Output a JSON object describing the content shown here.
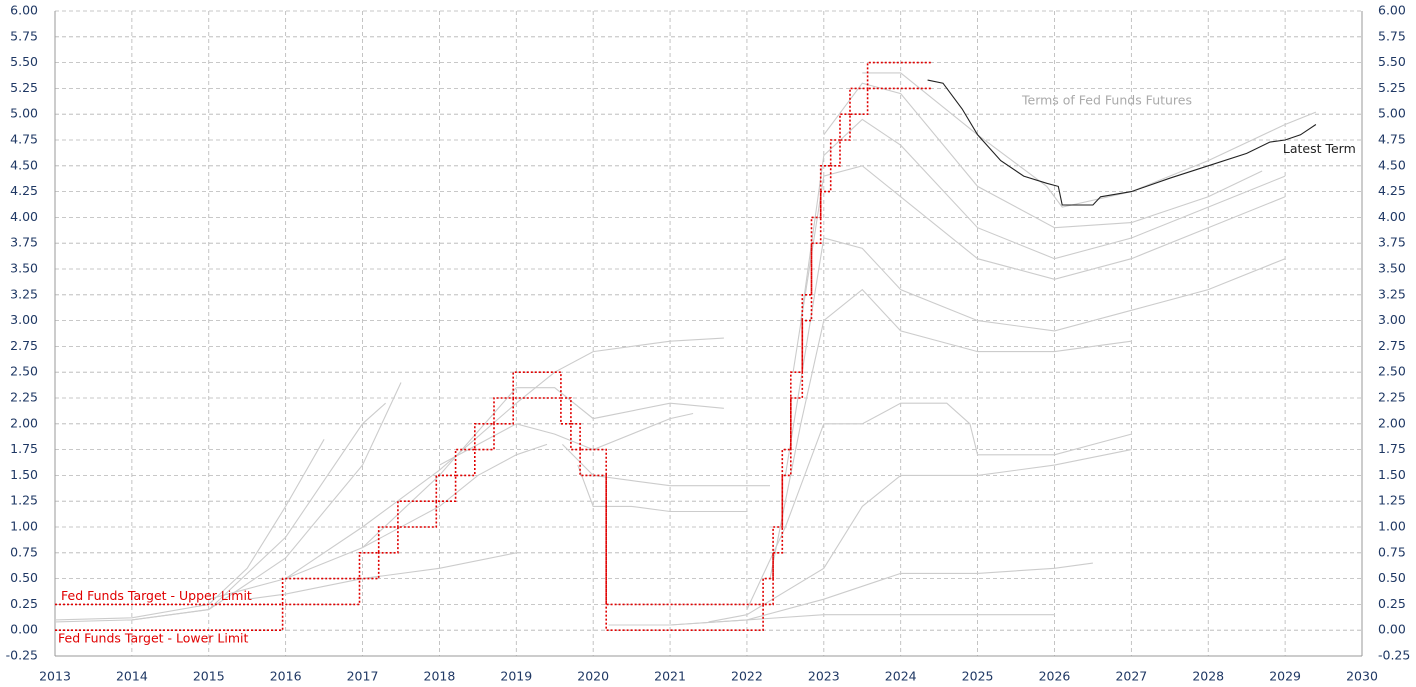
{
  "chart_data": {
    "type": "line",
    "annotation": "Terms of Fed Funds Futures",
    "xlim": [
      2013,
      2030
    ],
    "xticks": [
      2013,
      2014,
      2015,
      2016,
      2017,
      2018,
      2019,
      2020,
      2021,
      2022,
      2023,
      2024,
      2025,
      2026,
      2027,
      2028,
      2029,
      2030
    ],
    "ylim": [
      -0.25,
      6
    ],
    "yticks": [
      {
        "value": -0.25,
        "label": "-0.25"
      },
      {
        "value": 0,
        "label": "0.00"
      },
      {
        "value": 0.25,
        "label": "0.25"
      },
      {
        "value": 0.5,
        "label": "0.50"
      },
      {
        "value": 0.75,
        "label": "0.75"
      },
      {
        "value": 1,
        "label": "1.00"
      },
      {
        "value": 1.25,
        "label": "1.25"
      },
      {
        "value": 1.5,
        "label": "1.50"
      },
      {
        "value": 1.75,
        "label": "1.75"
      },
      {
        "value": 2,
        "label": "2.00"
      },
      {
        "value": 2.25,
        "label": "2.25"
      },
      {
        "value": 2.5,
        "label": "2.50"
      },
      {
        "value": 2.75,
        "label": "2.75"
      },
      {
        "value": 3,
        "label": "3.00"
      },
      {
        "value": 3.25,
        "label": "3.25"
      },
      {
        "value": 3.5,
        "label": "3.50"
      },
      {
        "value": 3.75,
        "label": "3.75"
      },
      {
        "value": 4,
        "label": "4.00"
      },
      {
        "value": 4.25,
        "label": "4.25"
      },
      {
        "value": 4.5,
        "label": "4.50"
      },
      {
        "value": 4.75,
        "label": "4.75"
      },
      {
        "value": 5,
        "label": "5.00"
      },
      {
        "value": 5.25,
        "label": "5.25"
      },
      {
        "value": 5.5,
        "label": "5.50"
      },
      {
        "value": 5.75,
        "label": "5.75"
      },
      {
        "value": 6,
        "label": "6.00"
      }
    ],
    "grid": true,
    "series": [
      {
        "color": "#cccccc",
        "x": [
          2013,
          2014,
          2015,
          2015.5,
          2016,
          2016.5
        ],
        "values": [
          0.1,
          0.12,
          0.25,
          0.6,
          1.2,
          1.85
        ]
      },
      {
        "color": "#cccccc",
        "x": [
          2013,
          2014,
          2015,
          2016,
          2017,
          2017.3
        ],
        "values": [
          0.08,
          0.1,
          0.2,
          0.9,
          2.0,
          2.2
        ]
      },
      {
        "color": "#cccccc",
        "x": [
          2014,
          2015,
          2016,
          2017,
          2017.5
        ],
        "values": [
          0.1,
          0.2,
          0.7,
          1.6,
          2.4
        ]
      },
      {
        "color": "#cccccc",
        "x": [
          2015,
          2016,
          2017,
          2018,
          2018.5,
          2019,
          2019.4
        ],
        "values": [
          0.3,
          0.5,
          0.8,
          1.2,
          1.5,
          1.7,
          1.8
        ]
      },
      {
        "color": "#cccccc",
        "x": [
          2015.5,
          2016,
          2017,
          2018,
          2019
        ],
        "values": [
          0.3,
          0.35,
          0.5,
          0.6,
          0.75
        ]
      },
      {
        "color": "#cccccc",
        "x": [
          2016,
          2017,
          2018,
          2019,
          2019.5,
          2020,
          2021,
          2021.7
        ],
        "values": [
          0.5,
          1.0,
          1.55,
          2.2,
          2.5,
          2.7,
          2.8,
          2.83
        ]
      },
      {
        "color": "#cccccc",
        "x": [
          2017,
          2018,
          2019,
          2019.5,
          2020,
          2021,
          2021.7
        ],
        "values": [
          0.8,
          1.5,
          2.35,
          2.35,
          2.05,
          2.2,
          2.15
        ]
      },
      {
        "color": "#cccccc",
        "x": [
          2018,
          2019,
          2019.5,
          2020,
          2021,
          2021.3
        ],
        "values": [
          1.6,
          2.0,
          1.9,
          1.75,
          2.05,
          2.1
        ]
      },
      {
        "color": "#cccccc",
        "x": [
          2019.6,
          2020,
          2020.5,
          2021,
          2022,
          2022.3
        ],
        "values": [
          1.8,
          1.5,
          1.45,
          1.4,
          1.4,
          1.4
        ]
      },
      {
        "color": "#cccccc",
        "x": [
          2019.8,
          2020,
          2020.5,
          2021,
          2022
        ],
        "values": [
          1.6,
          1.2,
          1.2,
          1.15,
          1.15
        ]
      },
      {
        "color": "#cccccc",
        "x": [
          2020.2,
          2021,
          2022,
          2023,
          2024,
          2026
        ],
        "values": [
          0.05,
          0.05,
          0.1,
          0.15,
          0.15,
          0.15
        ]
      },
      {
        "color": "#cccccc",
        "x": [
          2021,
          2022,
          2023,
          2024,
          2025,
          2026,
          2026.5
        ],
        "values": [
          0.05,
          0.1,
          0.3,
          0.55,
          0.55,
          0.6,
          0.65
        ]
      },
      {
        "color": "#cccccc",
        "x": [
          2021.5,
          2022,
          2023,
          2023.5,
          2024,
          2025,
          2026,
          2027
        ],
        "values": [
          0.08,
          0.15,
          0.6,
          1.2,
          1.5,
          1.5,
          1.6,
          1.75
        ]
      },
      {
        "color": "#cccccc",
        "x": [
          2022,
          2022.5,
          2023,
          2023.5,
          2024,
          2024.6,
          2024.9,
          2025,
          2026,
          2027
        ],
        "values": [
          0.2,
          1.0,
          2.0,
          2.0,
          2.2,
          2.2,
          2.0,
          1.7,
          1.7,
          1.9
        ]
      },
      {
        "color": "#cccccc",
        "x": [
          2022.3,
          2022.7,
          2023,
          2023.5,
          2024,
          2025,
          2026,
          2027
        ],
        "values": [
          0.5,
          2.0,
          3.0,
          3.3,
          2.9,
          2.7,
          2.7,
          2.8
        ]
      },
      {
        "color": "#cccccc",
        "x": [
          2022.5,
          2023,
          2023.5,
          2024,
          2025,
          2026,
          2027,
          2028,
          2029
        ],
        "values": [
          1.5,
          3.8,
          3.7,
          3.3,
          3.0,
          2.9,
          3.1,
          3.3,
          3.6
        ]
      },
      {
        "color": "#cccccc",
        "x": [
          2022.6,
          2023,
          2023.5,
          2024,
          2025,
          2026,
          2027,
          2028,
          2029
        ],
        "values": [
          2.5,
          4.4,
          4.5,
          4.2,
          3.6,
          3.4,
          3.6,
          3.9,
          4.2
        ]
      },
      {
        "color": "#cccccc",
        "x": [
          2022.7,
          2023,
          2023.5,
          2024,
          2025,
          2026,
          2027,
          2028,
          2029
        ],
        "values": [
          3.0,
          4.6,
          4.95,
          4.7,
          3.9,
          3.6,
          3.8,
          4.1,
          4.4
        ]
      },
      {
        "color": "#cccccc",
        "x": [
          2023,
          2023.5,
          2024,
          2025,
          2026,
          2027,
          2028,
          2028.7
        ],
        "values": [
          4.8,
          5.3,
          5.2,
          4.3,
          3.9,
          3.95,
          4.2,
          4.45
        ]
      },
      {
        "color": "#cccccc",
        "x": [
          2023.5,
          2024,
          2025,
          2025.9,
          2026.1,
          2027,
          2028,
          2029,
          2029.4
        ],
        "values": [
          5.4,
          5.4,
          4.8,
          4.3,
          4.1,
          4.25,
          4.55,
          4.9,
          5.02
        ]
      },
      {
        "name": "Fed Funds Target - Upper Limit",
        "color": "#e00000",
        "dashed": true,
        "x": [
          2013,
          2015.96,
          2015.96,
          2016.96,
          2016.96,
          2017.21,
          2017.21,
          2017.46,
          2017.46,
          2017.96,
          2017.96,
          2018.21,
          2018.21,
          2018.46,
          2018.46,
          2018.71,
          2018.71,
          2018.96,
          2018.96,
          2019.58,
          2019.58,
          2019.71,
          2019.71,
          2019.83,
          2019.83,
          2020.17,
          2020.17,
          2022.21,
          2022.21,
          2022.34,
          2022.34,
          2022.46,
          2022.46,
          2022.57,
          2022.57,
          2022.72,
          2022.72,
          2022.84,
          2022.84,
          2022.96,
          2022.96,
          2023.09,
          2023.09,
          2023.21,
          2023.21,
          2023.34,
          2023.34,
          2023.57,
          2023.57,
          2024.4
        ],
        "values": [
          0.25,
          0.25,
          0.5,
          0.5,
          0.75,
          0.75,
          1.0,
          1.0,
          1.25,
          1.25,
          1.5,
          1.5,
          1.75,
          1.75,
          2.0,
          2.0,
          2.25,
          2.25,
          2.5,
          2.5,
          2.25,
          2.25,
          2.0,
          2.0,
          1.75,
          1.75,
          0.25,
          0.25,
          0.5,
          0.5,
          1.0,
          1.0,
          1.75,
          1.75,
          2.5,
          2.5,
          3.25,
          3.25,
          4.0,
          4.0,
          4.5,
          4.5,
          4.75,
          4.75,
          5.0,
          5.0,
          5.25,
          5.25,
          5.5,
          5.5
        ]
      },
      {
        "name": "Fed Funds Target - Lower Limit",
        "color": "#e00000",
        "dashed": true,
        "x": [
          2013,
          2015.96,
          2015.96,
          2016.96,
          2016.96,
          2017.21,
          2017.21,
          2017.46,
          2017.46,
          2017.96,
          2017.96,
          2018.21,
          2018.21,
          2018.46,
          2018.46,
          2018.71,
          2018.71,
          2018.96,
          2018.96,
          2019.58,
          2019.58,
          2019.71,
          2019.71,
          2019.83,
          2019.83,
          2020.17,
          2020.17,
          2022.21,
          2022.21,
          2022.34,
          2022.34,
          2022.46,
          2022.46,
          2022.57,
          2022.57,
          2022.72,
          2022.72,
          2022.84,
          2022.84,
          2022.96,
          2022.96,
          2023.09,
          2023.09,
          2023.21,
          2023.21,
          2023.34,
          2023.34,
          2023.57,
          2023.57,
          2024.4
        ],
        "values": [
          0,
          0,
          0.25,
          0.25,
          0.5,
          0.5,
          0.75,
          0.75,
          1.0,
          1.0,
          1.25,
          1.25,
          1.5,
          1.5,
          1.75,
          1.75,
          2.0,
          2.0,
          2.25,
          2.25,
          2.0,
          2.0,
          1.75,
          1.75,
          1.5,
          1.5,
          0,
          0,
          0.25,
          0.25,
          0.75,
          0.75,
          1.5,
          1.5,
          2.25,
          2.25,
          3.0,
          3.0,
          3.75,
          3.75,
          4.25,
          4.25,
          4.5,
          4.5,
          4.75,
          4.75,
          5.0,
          5.0,
          5.25,
          5.25
        ]
      },
      {
        "name": "Latest Term",
        "color": "#222222",
        "x": [
          2024.35,
          2024.55,
          2024.8,
          2025.0,
          2025.3,
          2025.6,
          2025.9,
          2026.05,
          2026.1,
          2026.5,
          2026.6,
          2027.0,
          2027.5,
          2028.0,
          2028.5,
          2028.8,
          2029.0,
          2029.2,
          2029.4
        ],
        "values": [
          5.33,
          5.3,
          5.05,
          4.8,
          4.55,
          4.4,
          4.33,
          4.3,
          4.12,
          4.12,
          4.2,
          4.25,
          4.38,
          4.5,
          4.62,
          4.73,
          4.75,
          4.8,
          4.9
        ]
      }
    ]
  }
}
